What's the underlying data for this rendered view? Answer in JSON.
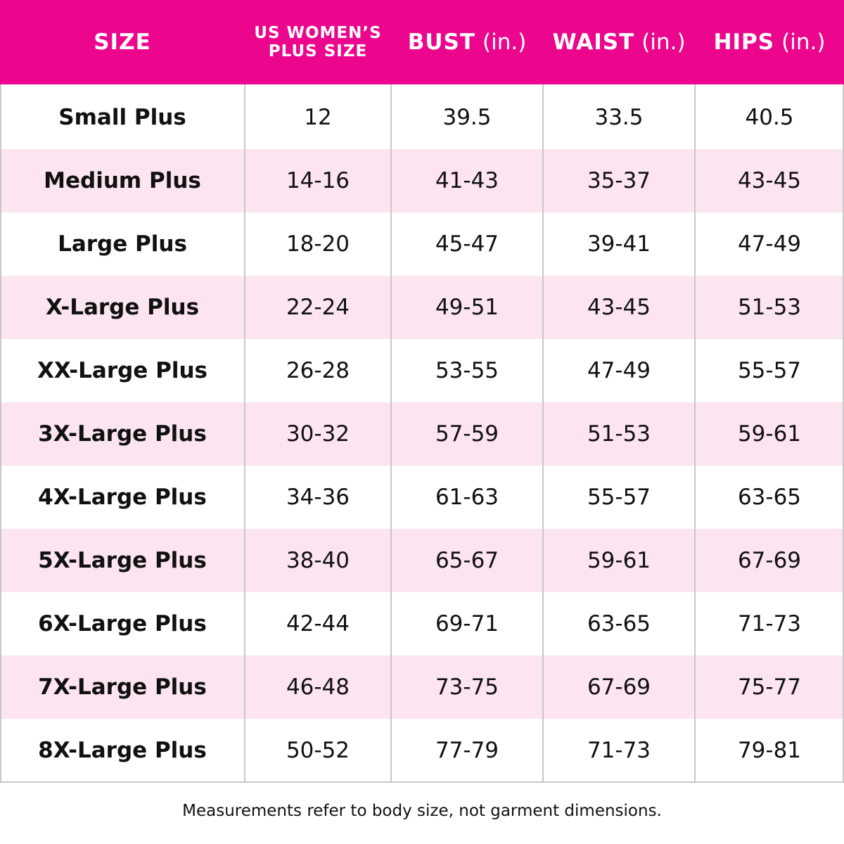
{
  "table": {
    "header": [
      {
        "label": "SIZE"
      },
      {
        "lines": [
          "US WOMEN’S",
          "PLUS SIZE"
        ]
      },
      {
        "label": "BUST",
        "unit": "(in.)"
      },
      {
        "label": "WAIST",
        "unit": "(in.)"
      },
      {
        "label": "HIPS",
        "unit": "(in.)"
      }
    ],
    "rows": [
      [
        "Small Plus",
        "12",
        "39.5",
        "33.5",
        "40.5"
      ],
      [
        "Medium Plus",
        "14-16",
        "41-43",
        "35-37",
        "43-45"
      ],
      [
        "Large Plus",
        "18-20",
        "45-47",
        "39-41",
        "47-49"
      ],
      [
        "X-Large Plus",
        "22-24",
        "49-51",
        "43-45",
        "51-53"
      ],
      [
        "XX-Large Plus",
        "26-28",
        "53-55",
        "47-49",
        "55-57"
      ],
      [
        "3X-Large Plus",
        "30-32",
        "57-59",
        "51-53",
        "59-61"
      ],
      [
        "4X-Large Plus",
        "34-36",
        "61-63",
        "55-57",
        "63-65"
      ],
      [
        "5X-Large Plus",
        "38-40",
        "65-67",
        "59-61",
        "67-69"
      ],
      [
        "6X-Large Plus",
        "42-44",
        "69-71",
        "63-65",
        "71-73"
      ],
      [
        "7X-Large Plus",
        "46-48",
        "73-75",
        "67-69",
        "75-77"
      ],
      [
        "8X-Large Plus",
        "50-52",
        "77-79",
        "71-73",
        "79-81"
      ]
    ]
  },
  "footnote": "Measurements refer to body size, not garment dimensions."
}
